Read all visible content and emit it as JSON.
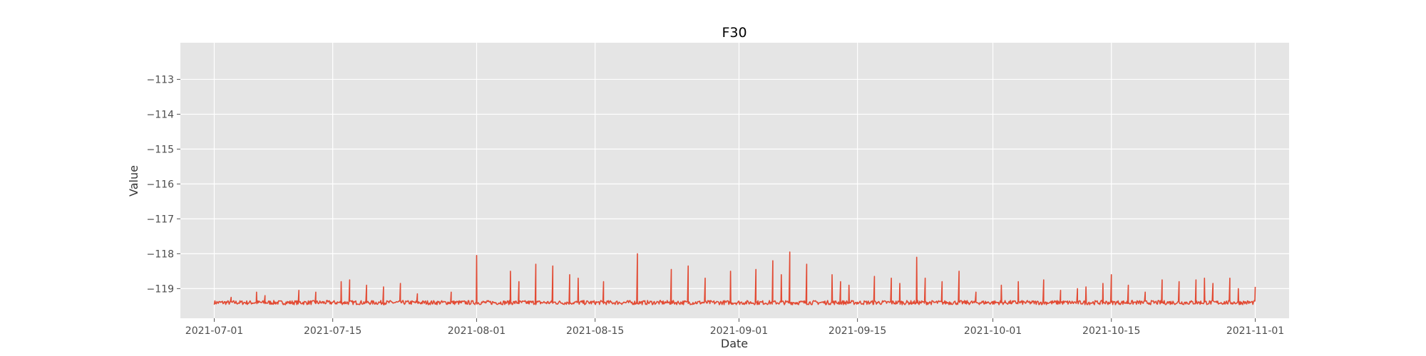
{
  "chart_data": {
    "type": "line",
    "title": "F30",
    "xlabel": "Date",
    "ylabel": "Value",
    "xlim": [
      "2021-06-27",
      "2021-11-05"
    ],
    "ylim": [
      -119.85,
      -111.95
    ],
    "grid": true,
    "x_ticks": [
      "2021-07-01",
      "2021-07-15",
      "2021-08-01",
      "2021-08-15",
      "2021-09-01",
      "2021-09-15",
      "2021-10-01",
      "2021-10-15",
      "2021-11-01"
    ],
    "y_ticks": [
      -113,
      -114,
      -115,
      -116,
      -117,
      -118,
      -119
    ],
    "y_tick_labels": [
      "−113",
      "−114",
      "−115",
      "−116",
      "−117",
      "−118",
      "−119"
    ],
    "colors": {
      "background": "#e5e5e5",
      "grid": "#ffffff",
      "line": "#e24a33"
    },
    "series": [
      {
        "baseline": -119.4,
        "start": "2021-07-01",
        "end": "2021-11-01",
        "spikes": [
          [
            "2021-07-03",
            -119.25
          ],
          [
            "2021-07-06",
            -119.1
          ],
          [
            "2021-07-07",
            -119.2
          ],
          [
            "2021-07-11",
            -119.05
          ],
          [
            "2021-07-13",
            -119.1
          ],
          [
            "2021-07-16",
            -118.8
          ],
          [
            "2021-07-17",
            -118.75
          ],
          [
            "2021-07-19",
            -118.9
          ],
          [
            "2021-07-21",
            -118.95
          ],
          [
            "2021-07-23",
            -118.85
          ],
          [
            "2021-07-25",
            -119.15
          ],
          [
            "2021-07-29",
            -119.1
          ],
          [
            "2021-08-01",
            -118.05
          ],
          [
            "2021-08-05",
            -118.5
          ],
          [
            "2021-08-06",
            -118.8
          ],
          [
            "2021-08-08",
            -118.3
          ],
          [
            "2021-08-10",
            -118.35
          ],
          [
            "2021-08-12",
            -118.6
          ],
          [
            "2021-08-13",
            -118.7
          ],
          [
            "2021-08-16",
            -118.8
          ],
          [
            "2021-08-20",
            -118.0
          ],
          [
            "2021-08-24",
            -118.45
          ],
          [
            "2021-08-26",
            -118.35
          ],
          [
            "2021-08-28",
            -118.7
          ],
          [
            "2021-08-31",
            -118.5
          ],
          [
            "2021-09-03",
            -118.45
          ],
          [
            "2021-09-05",
            -118.2
          ],
          [
            "2021-09-06",
            -118.6
          ],
          [
            "2021-09-07",
            -117.95
          ],
          [
            "2021-09-09",
            -118.3
          ],
          [
            "2021-09-12",
            -118.6
          ],
          [
            "2021-09-13",
            -118.8
          ],
          [
            "2021-09-14",
            -118.9
          ],
          [
            "2021-09-17",
            -118.65
          ],
          [
            "2021-09-19",
            -118.7
          ],
          [
            "2021-09-20",
            -118.85
          ],
          [
            "2021-09-22",
            -118.1
          ],
          [
            "2021-09-23",
            -118.7
          ],
          [
            "2021-09-25",
            -118.8
          ],
          [
            "2021-09-27",
            -118.5
          ],
          [
            "2021-09-29",
            -119.1
          ],
          [
            "2021-10-02",
            -118.9
          ],
          [
            "2021-10-04",
            -118.8
          ],
          [
            "2021-10-07",
            -118.75
          ],
          [
            "2021-10-09",
            -119.05
          ],
          [
            "2021-10-11",
            -119.0
          ],
          [
            "2021-10-12",
            -118.95
          ],
          [
            "2021-10-14",
            -118.85
          ],
          [
            "2021-10-15",
            -118.6
          ],
          [
            "2021-10-17",
            -118.9
          ],
          [
            "2021-10-19",
            -119.1
          ],
          [
            "2021-10-21",
            -118.75
          ],
          [
            "2021-10-23",
            -118.8
          ],
          [
            "2021-10-25",
            -118.75
          ],
          [
            "2021-10-26",
            -118.7
          ],
          [
            "2021-10-27",
            -118.85
          ],
          [
            "2021-10-29",
            -118.7
          ],
          [
            "2021-10-30",
            -119.0
          ],
          [
            "2021-11-01",
            -118.95
          ]
        ]
      }
    ]
  }
}
